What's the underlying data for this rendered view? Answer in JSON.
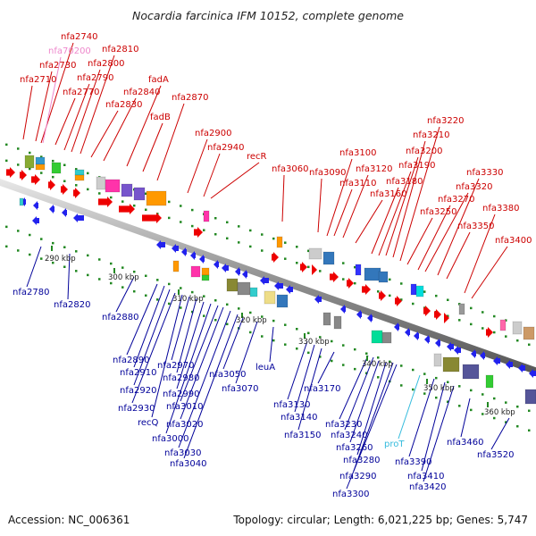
{
  "title": "Nocardia farcinica IFM 10152, complete genome",
  "footer": {
    "accession": "Accession: NC_006361",
    "topology": "Topology: circular; Length: 6,021,225 bp; Genes: 5,747"
  },
  "colors": {
    "backbone": "#808080",
    "forward_label": "#cc0000",
    "reverse_label": "#000099",
    "rna_label": "#ee88cc",
    "trna_label": "#33bbdd",
    "tick": "#228822"
  },
  "ticks": [
    {
      "label": "290 kbp"
    },
    {
      "label": "300 kbp"
    },
    {
      "label": "310 kbp"
    },
    {
      "label": "320 kbp"
    },
    {
      "label": "330 kbp"
    },
    {
      "label": "340 kbp"
    },
    {
      "label": "350 kbp"
    },
    {
      "label": "360 kbp"
    }
  ],
  "forward_genes": [
    {
      "label": "nfa2710"
    },
    {
      "label": "nfa2730"
    },
    {
      "label": "nfa2740"
    },
    {
      "label": "nfa70200",
      "kind": "rna"
    },
    {
      "label": "nfa2770"
    },
    {
      "label": "nfa2790"
    },
    {
      "label": "nfa2800"
    },
    {
      "label": "nfa2810"
    },
    {
      "label": "nfa2830"
    },
    {
      "label": "nfa2840"
    },
    {
      "label": "fadA"
    },
    {
      "label": "fadB"
    },
    {
      "label": "nfa2870"
    },
    {
      "label": "nfa2900"
    },
    {
      "label": "nfa2940"
    },
    {
      "label": "recR"
    },
    {
      "label": "nfa3060"
    },
    {
      "label": "nfa3090"
    },
    {
      "label": "nfa3100"
    },
    {
      "label": "nfa3110"
    },
    {
      "label": "nfa3120"
    },
    {
      "label": "nfa3160"
    },
    {
      "label": "nfa3180"
    },
    {
      "label": "nfa3190"
    },
    {
      "label": "nfa3200"
    },
    {
      "label": "nfa3210"
    },
    {
      "label": "nfa3220"
    },
    {
      "label": "nfa3250"
    },
    {
      "label": "nfa3270"
    },
    {
      "label": "nfa3320"
    },
    {
      "label": "nfa3330"
    },
    {
      "label": "nfa3350"
    },
    {
      "label": "nfa3380"
    },
    {
      "label": "nfa3400"
    }
  ],
  "reverse_genes": [
    {
      "label": "nfa2780"
    },
    {
      "label": "nfa2820"
    },
    {
      "label": "nfa2880"
    },
    {
      "label": "nfa2890"
    },
    {
      "label": "nfa2910"
    },
    {
      "label": "nfa2920"
    },
    {
      "label": "nfa2930"
    },
    {
      "label": "recQ"
    },
    {
      "label": "nfa2970"
    },
    {
      "label": "nfa2980"
    },
    {
      "label": "nfa2990"
    },
    {
      "label": "nfa3000"
    },
    {
      "label": "nfa3010"
    },
    {
      "label": "nfa3020"
    },
    {
      "label": "nfa3030"
    },
    {
      "label": "nfa3040"
    },
    {
      "label": "nfa3050"
    },
    {
      "label": "nfa3070"
    },
    {
      "label": "leuA"
    },
    {
      "label": "nfa3130"
    },
    {
      "label": "nfa3140"
    },
    {
      "label": "nfa3150"
    },
    {
      "label": "nfa3170"
    },
    {
      "label": "nfa3230"
    },
    {
      "label": "nfa3240"
    },
    {
      "label": "nfa3260"
    },
    {
      "label": "nfa3280"
    },
    {
      "label": "nfa3290"
    },
    {
      "label": "nfa3300"
    },
    {
      "label": "proT",
      "kind": "trna"
    },
    {
      "label": "nfa3390"
    },
    {
      "label": "nfa3410"
    },
    {
      "label": "nfa3420"
    },
    {
      "label": "nfa3460"
    },
    {
      "label": "nfa3520"
    }
  ]
}
